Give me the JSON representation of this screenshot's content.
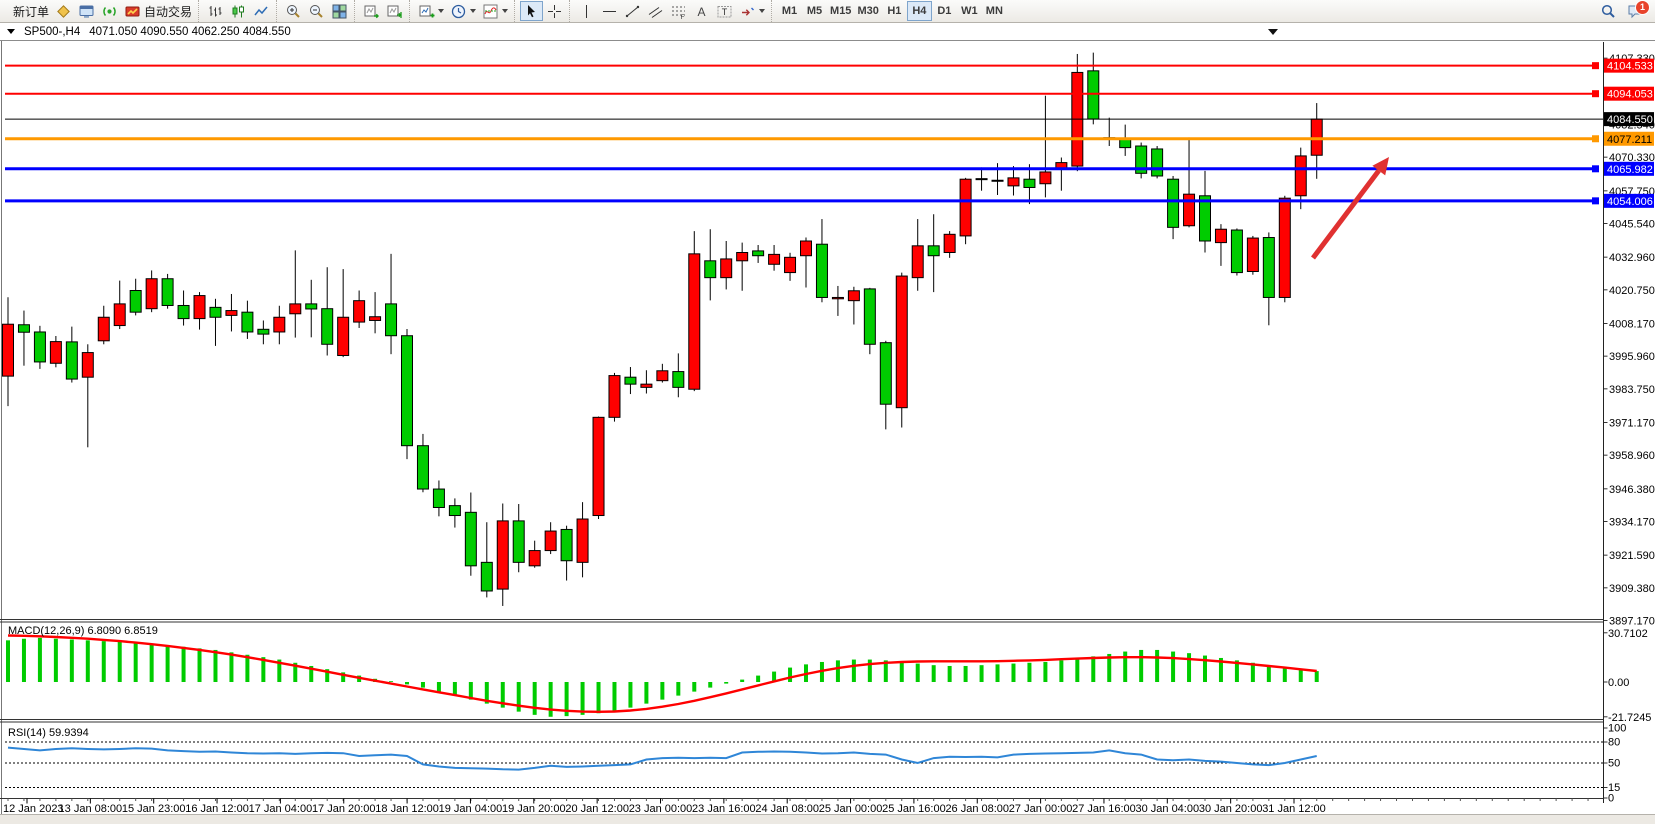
{
  "chart": {
    "symbol_period": "SP500-,H4",
    "ohlc_text": "4071.050 4090.550 4062.250 4084.550"
  },
  "toolbar": {
    "groups": [
      {
        "items": [
          {
            "name": "new-order-button",
            "label": "新订单"
          },
          {
            "name": "symbols-button",
            "icon": "gold-diamond"
          },
          {
            "name": "terminal-button",
            "icon": "terminal"
          },
          {
            "name": "signals-button",
            "icon": "signal"
          },
          {
            "name": "auto-trading-button",
            "icon": "autotrade",
            "label": "自动交易"
          }
        ]
      },
      {
        "items": [
          {
            "name": "bar-chart-button",
            "icon": "bars-chart"
          },
          {
            "name": "candle-chart-button",
            "icon": "candles-chart"
          },
          {
            "name": "line-chart-button",
            "icon": "line-chart"
          }
        ]
      },
      {
        "items": [
          {
            "name": "zoom-in-button",
            "icon": "zoom-in"
          },
          {
            "name": "zoom-out-button",
            "icon": "zoom-out"
          },
          {
            "name": "tile-windows-button",
            "icon": "tile-windows"
          }
        ]
      },
      {
        "items": [
          {
            "name": "auto-scroll-button",
            "icon": "auto-scroll"
          },
          {
            "name": "chart-shift-button",
            "icon": "chart-shift"
          }
        ]
      },
      {
        "items": [
          {
            "name": "new-chart-button",
            "icon": "new-chart",
            "dropdown": true
          },
          {
            "name": "periods-button",
            "icon": "clock",
            "dropdown": true
          },
          {
            "name": "indicators-button",
            "icon": "indicators",
            "dropdown": true
          }
        ]
      },
      {
        "items": [
          {
            "name": "cursor-button",
            "icon": "cursor",
            "active": true
          },
          {
            "name": "crosshair-button",
            "icon": "crosshair"
          }
        ]
      },
      {
        "items": [
          {
            "name": "vertical-line-button",
            "icon": "vline"
          },
          {
            "name": "horizontal-line-button",
            "icon": "hline"
          },
          {
            "name": "trendline-button",
            "icon": "trendline"
          },
          {
            "name": "channel-button",
            "icon": "channel"
          },
          {
            "name": "fibonacci-button",
            "icon": "fibo"
          },
          {
            "name": "text-button",
            "icon": "text-a"
          },
          {
            "name": "label-button",
            "icon": "text-label"
          },
          {
            "name": "arrows-button",
            "icon": "shapes",
            "dropdown": true
          }
        ]
      }
    ],
    "timeframes": {
      "options": [
        "M1",
        "M5",
        "M15",
        "M30",
        "H1",
        "H4",
        "D1",
        "W1",
        "MN"
      ],
      "active": "H4"
    },
    "right_icons": [
      {
        "name": "search-button",
        "icon": "search"
      },
      {
        "name": "chat-button",
        "icon": "chat",
        "badge": "1"
      }
    ]
  },
  "price_lines": [
    {
      "price": 4104.533,
      "label": "4104.533",
      "color": "#FF0000",
      "text_color": "#FFFFFF",
      "width": 2
    },
    {
      "price": 4094.053,
      "label": "4094.053",
      "color": "#FF0000",
      "text_color": "#FFFFFF",
      "width": 2
    },
    {
      "price": 4084.55,
      "label": "4084.550",
      "color": "#000000",
      "text_color": "#FFFFFF",
      "width": 1,
      "role": "current-price"
    },
    {
      "price": 4077.211,
      "label": "4077.211",
      "color": "#FF9900",
      "text_color": "#000000",
      "width": 3
    },
    {
      "price": 4065.982,
      "label": "4065.982",
      "color": "#0000FF",
      "text_color": "#FFFFFF",
      "width": 3
    },
    {
      "price": 4054.006,
      "label": "4054.006",
      "color": "#0000FF",
      "text_color": "#FFFFFF",
      "width": 3
    }
  ],
  "price_axis_ticks": [
    "4107.330",
    "4082.540",
    "4070.330",
    "4057.750",
    "4045.540",
    "4032.960",
    "4020.750",
    "4008.170",
    "3995.960",
    "3983.750",
    "3971.170",
    "3958.960",
    "3946.380",
    "3934.170",
    "3921.590",
    "3909.380",
    "3897.170"
  ],
  "time_axis_labels": [
    "12 Jan 2023",
    "13 Jan 08:00",
    "15 Jan 23:00",
    "16 Jan 12:00",
    "17 Jan 04:00",
    "17 Jan 20:00",
    "18 Jan 12:00",
    "19 Jan 04:00",
    "19 Jan 20:00",
    "20 Jan 12:00",
    "23 Jan 00:00",
    "23 Jan 16:00",
    "24 Jan 08:00",
    "25 Jan 00:00",
    "25 Jan 16:00",
    "26 Jan 08:00",
    "27 Jan 00:00",
    "27 Jan 16:00",
    "30 Jan 04:00",
    "30 Jan 20:00",
    "31 Jan 12:00"
  ],
  "chart_data": {
    "type": "candlestick",
    "symbol": "SP500-",
    "timeframe": "H4",
    "color_convention": "red = bullish (close>open), green = bearish",
    "up_color": "#FF0000",
    "down_color": "#00CC00",
    "price_range": [
      3897.17,
      4107.33
    ],
    "candles_ohlc": [
      [
        3988.5,
        4018.0,
        3977.3,
        4007.9
      ],
      [
        4007.7,
        4013.0,
        3992.4,
        4004.9
      ],
      [
        4005.0,
        4007.3,
        3991.2,
        3993.8
      ],
      [
        3993.3,
        4003.5,
        3991.8,
        4001.4
      ],
      [
        4001.3,
        4007.0,
        3986.1,
        3987.4
      ],
      [
        3988.1,
        4000.4,
        3961.9,
        3997.3
      ],
      [
        4001.7,
        4014.8,
        4000.4,
        4010.5
      ],
      [
        4007.4,
        4024.2,
        4006.1,
        4015.5
      ],
      [
        4020.5,
        4024.9,
        4011.2,
        4012.4
      ],
      [
        4013.7,
        4028.0,
        4012.4,
        4024.9
      ],
      [
        4024.9,
        4026.7,
        4013.7,
        4014.9
      ],
      [
        4014.9,
        4020.5,
        4007.4,
        4010.0
      ],
      [
        4010.0,
        4019.9,
        4005.9,
        4018.6
      ],
      [
        4014.2,
        4017.4,
        3999.8,
        4010.5
      ],
      [
        4011.2,
        4019.2,
        4005.2,
        4013.0
      ],
      [
        4012.4,
        4016.7,
        4002.4,
        4005.0
      ],
      [
        4006.0,
        4009.3,
        4000.4,
        4004.2
      ],
      [
        4005.0,
        4014.8,
        4000.4,
        4010.5
      ],
      [
        4011.8,
        4035.5,
        4002.9,
        4015.5
      ],
      [
        4015.5,
        4024.5,
        4003.0,
        4013.6
      ],
      [
        4013.7,
        4029.2,
        3996.2,
        4000.4
      ],
      [
        3996.2,
        4028.5,
        3995.6,
        4010.5
      ],
      [
        4008.7,
        4020.5,
        4006.5,
        4016.7
      ],
      [
        4009.3,
        4019.9,
        4004.5,
        4010.7
      ],
      [
        4015.5,
        4034.2,
        3996.7,
        4003.6
      ],
      [
        4003.6,
        4006.1,
        3957.5,
        3962.5
      ],
      [
        3962.5,
        3966.9,
        3945.1,
        3946.3
      ],
      [
        3946.3,
        3949.5,
        3936.1,
        3939.4
      ],
      [
        3940.1,
        3942.8,
        3931.9,
        3936.4
      ],
      [
        3937.6,
        3945.0,
        3913.9,
        3917.6
      ],
      [
        3918.9,
        3933.9,
        3905.8,
        3908.2
      ],
      [
        3908.9,
        3940.9,
        3902.6,
        3934.4
      ],
      [
        3934.4,
        3940.7,
        3915.2,
        3918.9
      ],
      [
        3917.6,
        3927.0,
        3916.9,
        3923.3
      ],
      [
        3923.3,
        3933.9,
        3922.0,
        3930.6
      ],
      [
        3931.2,
        3932.6,
        3912.1,
        3919.5
      ],
      [
        3918.9,
        3941.4,
        3913.3,
        3935.1
      ],
      [
        3936.4,
        3973.4,
        3935.1,
        3973.1
      ],
      [
        3973.1,
        3989.7,
        3971.5,
        3988.7
      ],
      [
        3988.1,
        3991.9,
        3981.8,
        3985.5
      ],
      [
        3984.3,
        3990.7,
        3982.0,
        3985.5
      ],
      [
        3986.8,
        3993.1,
        3986.1,
        3990.5
      ],
      [
        3990.2,
        3997.0,
        3980.6,
        3984.3
      ],
      [
        3983.6,
        4042.7,
        3982.9,
        4034.2
      ],
      [
        4031.6,
        4043.4,
        4016.8,
        4025.3
      ],
      [
        4025.3,
        4039.0,
        4020.9,
        4032.3
      ],
      [
        4031.6,
        4038.4,
        4020.4,
        4034.7
      ],
      [
        4035.3,
        4037.5,
        4030.8,
        4033.5
      ],
      [
        4030.3,
        4037.5,
        4027.9,
        4034.0
      ],
      [
        4027.2,
        4034.6,
        4024.1,
        4032.9
      ],
      [
        4033.5,
        4040.3,
        4021.6,
        4039.0
      ],
      [
        4037.8,
        4047.2,
        4016.1,
        4017.9
      ],
      [
        4017.4,
        4022.2,
        4011.0,
        4017.9
      ],
      [
        4016.7,
        4021.9,
        4007.8,
        4020.4
      ],
      [
        4021.1,
        4021.5,
        3996.7,
        4000.4
      ],
      [
        4001.0,
        4001.7,
        3968.6,
        3978.0
      ],
      [
        3976.7,
        4027.2,
        3969.3,
        4025.9
      ],
      [
        4025.3,
        4047.2,
        4020.4,
        4037.2
      ],
      [
        4037.2,
        4049.0,
        4019.9,
        4033.5
      ],
      [
        4034.7,
        4042.7,
        4032.7,
        4041.5
      ],
      [
        4040.9,
        4062.6,
        4037.8,
        4062.1
      ],
      [
        4062.1,
        4066.5,
        4057.8,
        4062.3
      ],
      [
        4061.4,
        4068.1,
        4056.2,
        4061.7
      ],
      [
        4059.6,
        4067.0,
        4056.0,
        4062.6
      ],
      [
        4062.1,
        4067.7,
        4052.8,
        4059.0
      ],
      [
        4060.4,
        4093.3,
        4055.3,
        4064.8
      ],
      [
        4065.8,
        4070.2,
        4057.8,
        4068.3
      ],
      [
        4067.0,
        4108.9,
        4065.1,
        4102.0
      ],
      [
        4102.6,
        4109.4,
        4082.6,
        4084.6
      ],
      [
        4077.6,
        4085.1,
        4074.5,
        4077.2
      ],
      [
        4077.1,
        4082.5,
        4070.8,
        4073.9
      ],
      [
        4074.5,
        4075.8,
        4062.4,
        4064.3
      ],
      [
        4073.4,
        4074.5,
        4062.4,
        4063.3
      ],
      [
        4062.1,
        4063.3,
        4039.7,
        4044.1
      ],
      [
        4044.7,
        4077.7,
        4044.1,
        4056.5
      ],
      [
        4055.9,
        4065.2,
        4034.7,
        4039.0
      ],
      [
        4038.4,
        4045.3,
        4029.7,
        4043.4
      ],
      [
        4043.1,
        4043.7,
        4026.1,
        4027.2
      ],
      [
        4027.6,
        4040.9,
        4026.4,
        4040.1
      ],
      [
        4040.3,
        4042.2,
        4007.5,
        4017.9
      ],
      [
        4017.9,
        4055.9,
        4016.1,
        4055.0
      ],
      [
        4055.9,
        4073.9,
        4050.9,
        4070.8
      ],
      [
        4071.05,
        4090.55,
        4062.25,
        4084.55
      ]
    ],
    "macd": {
      "label": "MACD(12,26,9) 6.8090 6.8519",
      "params": [
        12,
        26,
        9
      ],
      "value": 6.809,
      "signal_value": 6.8519,
      "axis_labels": [
        "30.7102",
        "0.00",
        "-21.7245"
      ],
      "scale": [
        -21.7245,
        30.7102
      ],
      "histogram_color": "#00CC00",
      "signal_color": "#FF0000",
      "histogram": [
        26,
        27,
        27.5,
        27,
        26.5,
        26,
        25.5,
        25,
        24.5,
        24,
        23,
        22,
        21,
        20,
        18.5,
        17,
        15.5,
        14,
        12,
        10,
        8,
        6,
        4,
        2,
        0.5,
        -1.5,
        -3.5,
        -6,
        -8.5,
        -11,
        -13.5,
        -16,
        -18.5,
        -20.5,
        -21.7,
        -21.3,
        -20.5,
        -19.5,
        -18,
        -16,
        -13.5,
        -11,
        -8.5,
        -6,
        -3.5,
        -1,
        1.5,
        4,
        6.5,
        9,
        11,
        12.5,
        13.5,
        14,
        14,
        13.5,
        12.5,
        11.5,
        10.5,
        10,
        10,
        10.5,
        11,
        11.5,
        12,
        12.5,
        13.5,
        14.5,
        16,
        17.5,
        19,
        20,
        20,
        19,
        18,
        16.5,
        15,
        13.5,
        12,
        10.5,
        9,
        8,
        6.8
      ],
      "signal": [
        29,
        28.8,
        28.5,
        28.1,
        27.6,
        27,
        26.3,
        25.5,
        24.6,
        23.6,
        22.5,
        21.3,
        20,
        18.6,
        17.1,
        15.5,
        13.8,
        12,
        10.2,
        8.3,
        6.4,
        4.5,
        2.6,
        0.8,
        -1,
        -2.8,
        -4.6,
        -6.4,
        -8.2,
        -10,
        -11.7,
        -13.3,
        -14.8,
        -16.1,
        -17.2,
        -18,
        -18.5,
        -18.6,
        -18.4,
        -17.8,
        -16.8,
        -15.4,
        -13.7,
        -11.7,
        -9.5,
        -7.1,
        -4.6,
        -2.1,
        0.4,
        2.8,
        5,
        7,
        8.7,
        10.1,
        11.2,
        12,
        12.5,
        12.8,
        12.9,
        12.9,
        12.9,
        12.9,
        13,
        13.2,
        13.5,
        13.8,
        14.2,
        14.6,
        15,
        15.3,
        15.5,
        15.5,
        15.3,
        14.9,
        14.3,
        13.6,
        12.8,
        11.9,
        11,
        10,
        9,
        7.9,
        6.85
      ]
    },
    "rsi": {
      "label": "RSI(14) 59.9394",
      "period": 14,
      "value": 59.9394,
      "levels": [
        80,
        50,
        15
      ],
      "axis_labels": [
        "100",
        "80",
        "50",
        "15",
        "0"
      ],
      "color": "#2F86D7",
      "values": [
        72,
        70,
        68,
        70,
        71,
        70,
        69.5,
        70,
        71,
        70.5,
        68,
        67,
        66,
        66.5,
        65,
        64,
        63.5,
        64,
        63,
        64,
        64.5,
        64,
        60,
        61,
        62,
        60,
        48,
        45,
        43,
        42.5,
        42,
        41,
        40.5,
        43,
        46,
        44.5,
        45,
        46,
        47,
        48,
        55,
        57,
        57.5,
        57,
        57.5,
        57,
        65,
        66,
        66.5,
        66,
        65,
        63.5,
        64,
        65,
        63,
        62,
        55,
        50,
        57,
        59,
        58.5,
        59,
        58,
        62,
        63,
        63.5,
        64,
        64.5,
        65,
        68,
        64,
        62,
        55,
        54,
        55,
        53,
        52,
        50,
        48,
        47,
        50,
        55,
        59.94
      ]
    }
  },
  "annotations": {
    "arrow": {
      "color": "#E03131",
      "description": "red up-trend arrow pointing to upper right"
    }
  }
}
